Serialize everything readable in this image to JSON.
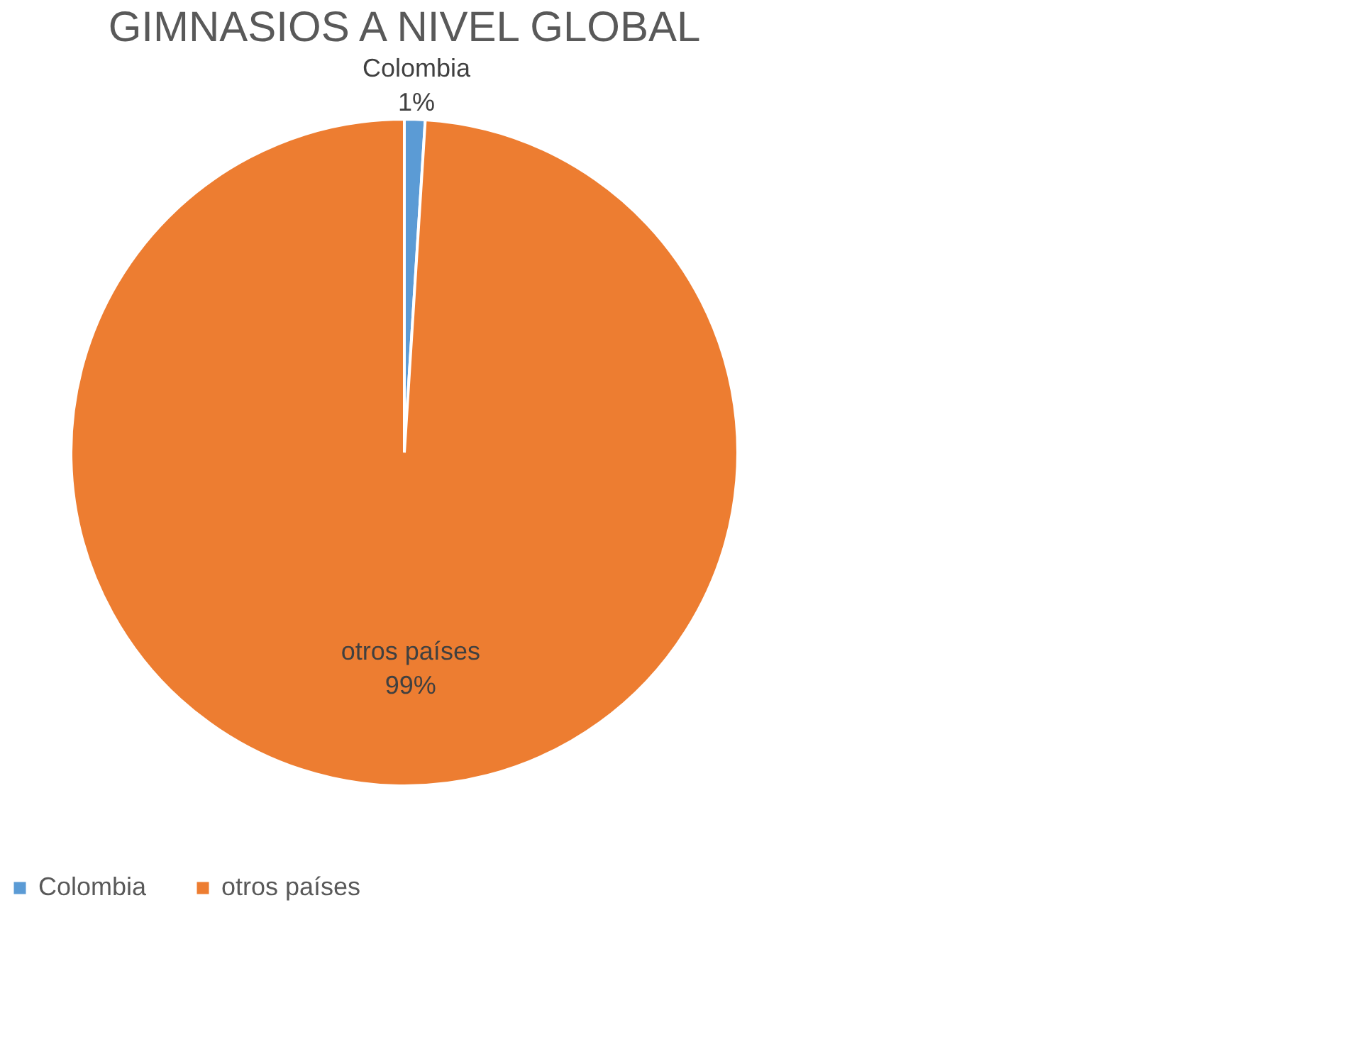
{
  "chart_data": {
    "type": "pie",
    "title": "GIMNASIOS A NIVEL GLOBAL",
    "categories": [
      "Colombia",
      "otros países"
    ],
    "values": [
      1,
      99
    ],
    "colors": [
      "#5b9bd5",
      "#ed7d31"
    ],
    "value_labels": [
      "1%",
      "99%"
    ],
    "legend": "bottom"
  }
}
